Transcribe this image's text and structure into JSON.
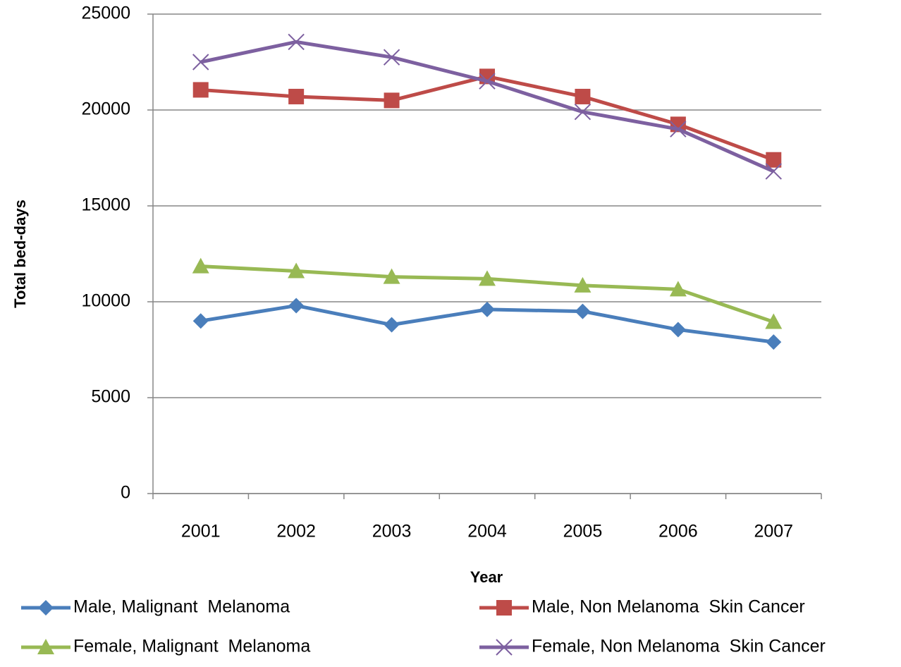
{
  "chart_data": {
    "type": "line",
    "x_label": "Year",
    "y_label": "Total bed-days",
    "categories": [
      "2001",
      "2002",
      "2003",
      "2004",
      "2005",
      "2006",
      "2007"
    ],
    "ylim": [
      0,
      25000
    ],
    "yticks": [
      0,
      5000,
      10000,
      15000,
      20000,
      25000
    ],
    "grid": true,
    "series": [
      {
        "name": "Male, Malignant  Melanoma",
        "color": "#4a7ebb",
        "marker": "diamond",
        "values": [
          9000,
          9800,
          8800,
          9600,
          9500,
          8550,
          7900
        ]
      },
      {
        "name": "Male, Non Melanoma  Skin Cancer",
        "color": "#be4b48",
        "marker": "square",
        "values": [
          21050,
          20700,
          20500,
          21750,
          20700,
          19250,
          17400
        ]
      },
      {
        "name": "Female, Malignant  Melanoma",
        "color": "#98b954",
        "marker": "triangle",
        "values": [
          11850,
          11600,
          11300,
          11200,
          10850,
          10650,
          8950
        ]
      },
      {
        "name": "Female, Non Melanoma  Skin Cancer",
        "color": "#7d60a0",
        "marker": "x",
        "values": [
          22500,
          23550,
          22750,
          21500,
          19900,
          19000,
          16800
        ]
      }
    ]
  }
}
